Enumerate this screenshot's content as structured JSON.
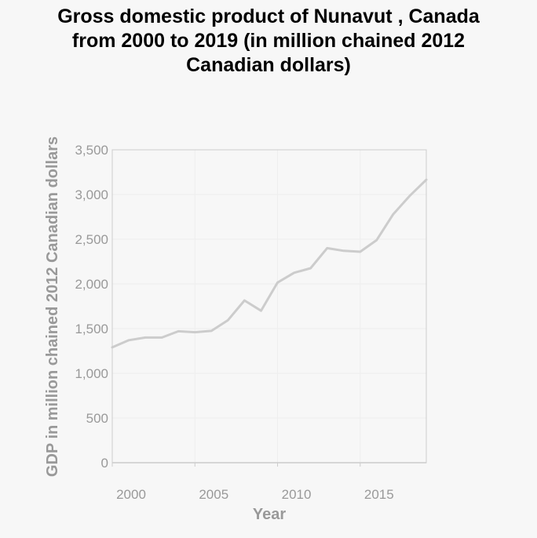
{
  "chart_data": {
    "type": "line",
    "title_lines": [
      "Gross domestic product of Nunavut , Canada",
      "from 2000 to 2019 (in million chained 2012",
      "Canadian dollars)"
    ],
    "xlabel": "Year",
    "ylabel": "GDP in million chained 2012 Canadian dollars",
    "xlim": [
      2000,
      2019
    ],
    "ylim": [
      0,
      3500
    ],
    "x_ticks": [
      2000,
      2005,
      2010,
      2015
    ],
    "x_tick_labels": [
      "2000",
      "2005",
      "2010",
      "2015"
    ],
    "y_ticks": [
      0,
      500,
      1000,
      1500,
      2000,
      2500,
      3000,
      3500
    ],
    "y_tick_labels": [
      "0",
      "500",
      "1,000",
      "1,500",
      "2,000",
      "2,500",
      "3,000",
      "3,500"
    ],
    "grid": true,
    "series": [
      {
        "x": [
          2000,
          2001,
          2002,
          2003,
          2004,
          2005,
          2006,
          2007,
          2008,
          2009,
          2010,
          2011,
          2012,
          2013,
          2014,
          2015,
          2016,
          2017,
          2018,
          2019
        ],
        "values": [
          1290,
          1370,
          1400,
          1400,
          1470,
          1460,
          1475,
          1595,
          1815,
          1700,
          2015,
          2125,
          2175,
          2400,
          2370,
          2360,
          2490,
          2780,
          2985,
          3165
        ]
      }
    ],
    "colors": {
      "line": "#cccccc",
      "grid": "#eeeeee",
      "axis": "#cccccc",
      "text": "#999999",
      "title": "#000000"
    }
  }
}
